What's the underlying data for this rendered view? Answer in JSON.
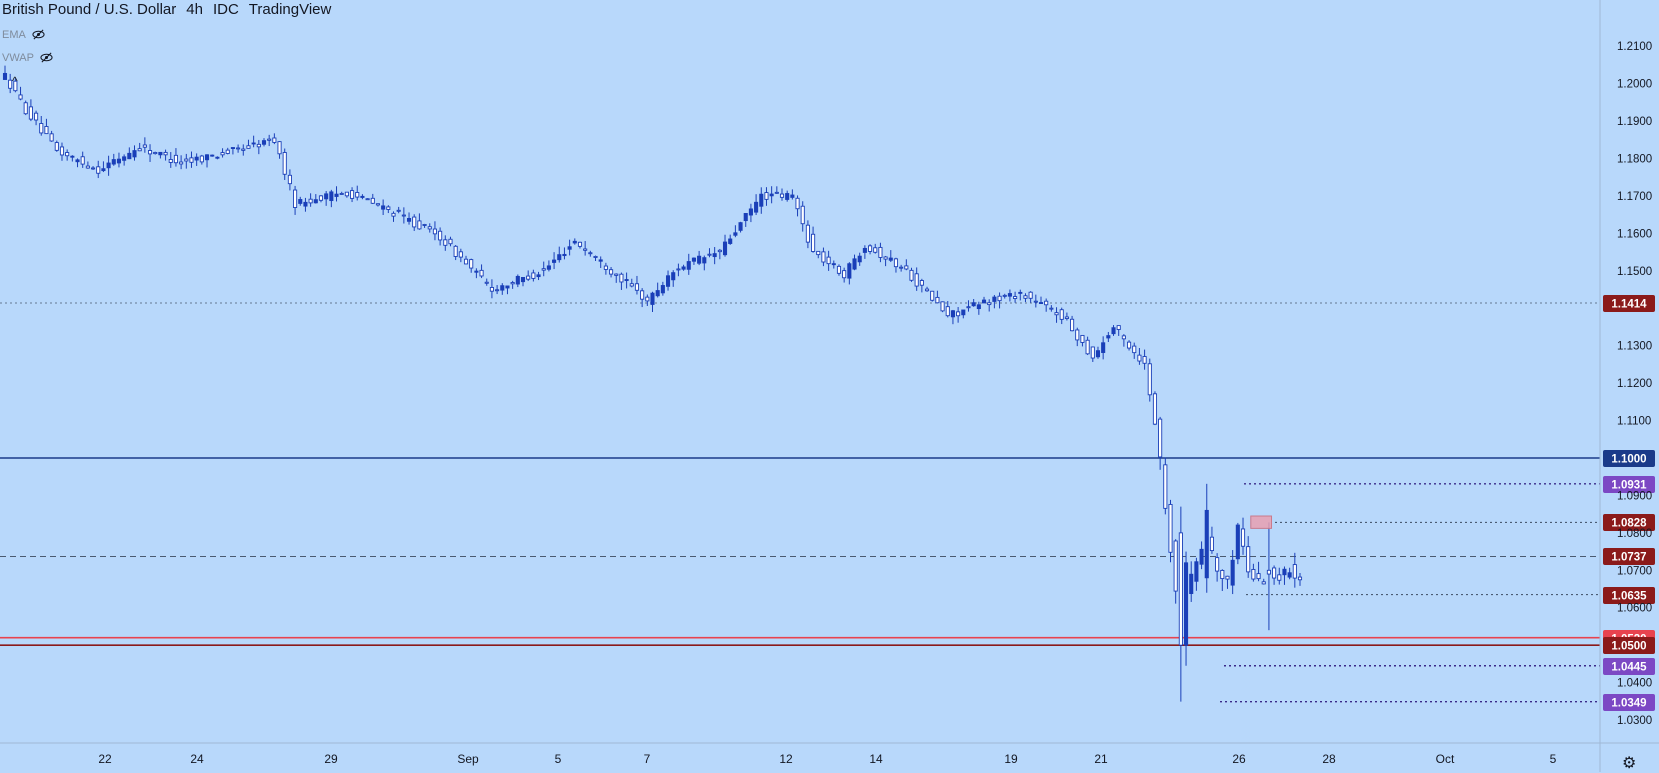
{
  "header": {
    "symbol": "British Pound / U.S. Dollar",
    "interval": "4h",
    "source": "IDC",
    "platform": "TradingView"
  },
  "indicators": [
    {
      "label": "EMA"
    },
    {
      "label": "VWAP"
    }
  ],
  "colors": {
    "background": "#b8d8fb",
    "up_candle_fill": "#1a3fb8",
    "down_candle_fill": "#ffffff",
    "candle_outline": "#1a3fb8",
    "level_dark_red": "#8b1a1a",
    "level_navy": "#1a3a8a",
    "level_red": "#e8434f",
    "level_purple": "#7c48c4",
    "axis_text": "#131722"
  },
  "chart_data": {
    "type": "candlestick",
    "title": "British Pound / U.S. Dollar 4h IDC",
    "x_axis": {
      "labels": [
        "22",
        "24",
        "29",
        "Sep",
        "5",
        "7",
        "12",
        "14",
        "19",
        "21",
        "26",
        "28",
        "Oct",
        "5"
      ]
    },
    "y_axis": {
      "min": 1.026,
      "max": 1.213,
      "ticks": [
        "1.2100",
        "1.2000",
        "1.1900",
        "1.1800",
        "1.1700",
        "1.1600",
        "1.1500",
        "1.1300",
        "1.1200",
        "1.1100",
        "1.0900",
        "1.0800",
        "1.0700",
        "1.0600",
        "1.0400",
        "1.0300"
      ]
    },
    "levels": [
      {
        "label": "1.1414",
        "value": 1.1414,
        "style": "dotted",
        "color": "level_dark_red"
      },
      {
        "label": "1.1000",
        "value": 1.1,
        "style": "solid",
        "color": "level_navy"
      },
      {
        "label": "1.0931",
        "value": 1.0931,
        "style": "dotted",
        "color": "level_purple"
      },
      {
        "label": "1.0828",
        "value": 1.0828,
        "style": "dotted",
        "color": "level_dark_red"
      },
      {
        "label": "1.0737",
        "value": 1.0737,
        "style": "dashed",
        "color": "level_dark_red"
      },
      {
        "label": "1.0635",
        "value": 1.0635,
        "style": "dotted",
        "color": "level_dark_red"
      },
      {
        "label": "1.0520",
        "value": 1.052,
        "style": "solid",
        "color": "level_red"
      },
      {
        "label": "1.0500",
        "value": 1.05,
        "style": "solid",
        "color": "level_dark_red"
      },
      {
        "label": "1.0445",
        "value": 1.0445,
        "style": "dotted",
        "color": "level_purple"
      },
      {
        "label": "1.0349",
        "value": 1.0349,
        "style": "dotted",
        "color": "level_purple"
      }
    ],
    "highlight_box": {
      "price_top": 1.0845,
      "price_bottom": 1.0812,
      "bar_start": 240.5,
      "bar_end": 244.5
    },
    "keypoints": [
      [
        0,
        1.202
      ],
      [
        4,
        1.193
      ],
      [
        10,
        1.182
      ],
      [
        18,
        1.177
      ],
      [
        26,
        1.183
      ],
      [
        34,
        1.179
      ],
      [
        44,
        1.182
      ],
      [
        52,
        1.185
      ],
      [
        56,
        1.168
      ],
      [
        66,
        1.171
      ],
      [
        76,
        1.165
      ],
      [
        84,
        1.159
      ],
      [
        94,
        1.145
      ],
      [
        104,
        1.15
      ],
      [
        110,
        1.158
      ],
      [
        118,
        1.149
      ],
      [
        124,
        1.142
      ],
      [
        130,
        1.151
      ],
      [
        138,
        1.155
      ],
      [
        146,
        1.17
      ],
      [
        152,
        1.17
      ],
      [
        156,
        1.155
      ],
      [
        162,
        1.149
      ],
      [
        166,
        1.157
      ],
      [
        174,
        1.15
      ],
      [
        182,
        1.138
      ],
      [
        190,
        1.142
      ],
      [
        196,
        1.144
      ],
      [
        204,
        1.138
      ],
      [
        210,
        1.127
      ],
      [
        214,
        1.135
      ],
      [
        220,
        1.125
      ],
      [
        222,
        1.11
      ],
      [
        224,
        1.088
      ],
      [
        226,
        1.065
      ],
      [
        228,
        1.064
      ],
      [
        232,
        1.08
      ],
      [
        234,
        1.07
      ],
      [
        236,
        1.066
      ],
      [
        238,
        1.082
      ],
      [
        240,
        1.07
      ],
      [
        242,
        1.067
      ],
      [
        244,
        1.069
      ],
      [
        246,
        1.068
      ],
      [
        248,
        1.07
      ],
      [
        250,
        1.069
      ]
    ],
    "special_candles": [
      {
        "i": 227,
        "o": 1.08,
        "h": 1.087,
        "l": 1.0349,
        "c": 1.05
      },
      {
        "i": 228,
        "o": 1.05,
        "h": 1.075,
        "l": 1.0445,
        "c": 1.072
      },
      {
        "i": 232,
        "o": 1.068,
        "h": 1.0931,
        "l": 1.064,
        "c": 1.086
      },
      {
        "i": 244,
        "o": 1.07,
        "h": 1.0828,
        "l": 1.054,
        "c": 1.069
      }
    ]
  }
}
